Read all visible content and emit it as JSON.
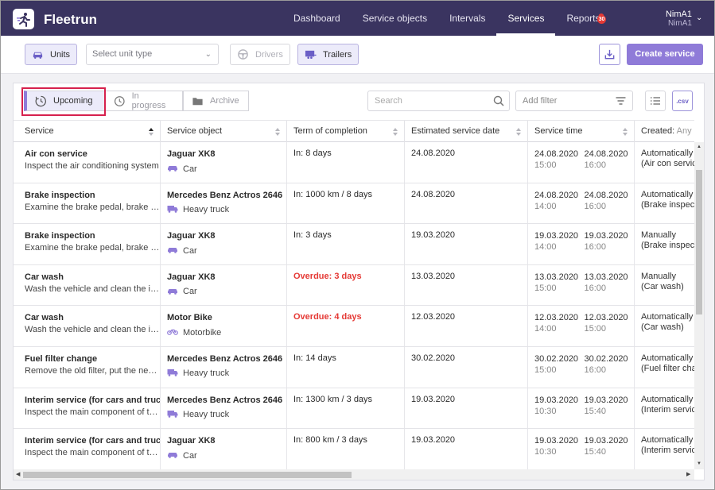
{
  "nav": {
    "brand": "Fleetrun",
    "menu": [
      "Dashboard",
      "Service objects",
      "Intervals",
      "Services",
      "Reports"
    ],
    "active_menu": "Services",
    "notification_count": "30",
    "user_name": "NimA1",
    "user_sub": "NimA1"
  },
  "toolbar": {
    "units_label": "Units",
    "unit_type_placeholder": "Select unit type",
    "drivers_label": "Drivers",
    "trailers_label": "Trailers",
    "create_label": "Create service"
  },
  "tabs": {
    "upcoming": "Upcoming",
    "in_progress": "In progress",
    "archive": "Archive"
  },
  "search": {
    "placeholder": "Search"
  },
  "filter": {
    "placeholder": "Add filter"
  },
  "csv_label": ".csv",
  "table": {
    "headers": {
      "service": "Service",
      "object": "Service object",
      "term": "Term of completion",
      "estimated": "Estimated service date",
      "time": "Service time",
      "created": "Created:",
      "created_filter": "Any"
    },
    "rows": [
      {
        "name": "Air con service",
        "desc": "Inspect the air conditioning system",
        "object": "Jaguar XK8",
        "vehicle": "Car",
        "term": "In: 8 days",
        "overdue": false,
        "est": "24.08.2020",
        "start_date": "24.08.2020",
        "start_time": "15:00",
        "end_date": "24.08.2020",
        "end_time": "16:00",
        "created": "Automatically",
        "created_sub": "(Air con servic"
      },
      {
        "name": "Brake inspection",
        "desc": "Examine the brake pedal, brake fu...",
        "object": "Mercedes Benz Actros 2646",
        "vehicle": "Heavy truck",
        "term": "In: 1000 km / 8 days",
        "overdue": false,
        "est": "24.08.2020",
        "start_date": "24.08.2020",
        "start_time": "14:00",
        "end_date": "24.08.2020",
        "end_time": "16:00",
        "created": "Automatically",
        "created_sub": "(Brake inspect"
      },
      {
        "name": "Brake inspection",
        "desc": "Examine the brake pedal, brake fu...",
        "object": "Jaguar XK8",
        "vehicle": "Car",
        "term": "In: 3 days",
        "overdue": false,
        "est": "19.03.2020",
        "start_date": "19.03.2020",
        "start_time": "14:00",
        "end_date": "19.03.2020",
        "end_time": "16:00",
        "created": "Manually",
        "created_sub": "(Brake inspect"
      },
      {
        "name": "Car wash",
        "desc": "Wash the vehicle and clean the in...",
        "object": "Jaguar XK8",
        "vehicle": "Car",
        "term": "Overdue: 3 days",
        "overdue": true,
        "est": "13.03.2020",
        "start_date": "13.03.2020",
        "start_time": "15:00",
        "end_date": "13.03.2020",
        "end_time": "16:00",
        "created": "Manually",
        "created_sub": "(Car wash)"
      },
      {
        "name": "Car wash",
        "desc": "Wash the vehicle and clean the in...",
        "object": "Motor Bike",
        "vehicle": "Motorbike",
        "term": "Overdue: 4 days",
        "overdue": true,
        "est": "12.03.2020",
        "start_date": "12.03.2020",
        "start_time": "14:00",
        "end_date": "12.03.2020",
        "end_time": "15:00",
        "created": "Automatically",
        "created_sub": "(Car wash)"
      },
      {
        "name": "Fuel filter change",
        "desc": "Remove the old filter, put the new ...",
        "object": "Mercedes Benz Actros 2646",
        "vehicle": "Heavy truck",
        "term": "In: 14 days",
        "overdue": false,
        "est": "30.02.2020",
        "start_date": "30.02.2020",
        "start_time": "15:00",
        "end_date": "30.02.2020",
        "end_time": "16:00",
        "created": "Automatically",
        "created_sub": "(Fuel filter char"
      },
      {
        "name": "Interim service (for cars and truc...",
        "desc": "Inspect the main component of th...",
        "object": "Mercedes Benz Actros 2646",
        "vehicle": "Heavy truck",
        "term": "In: 1300 km / 3 days",
        "overdue": false,
        "est": "19.03.2020",
        "start_date": "19.03.2020",
        "start_time": "10:30",
        "end_date": "19.03.2020",
        "end_time": "15:40",
        "created": "Automatically",
        "created_sub": "(Interim servic"
      },
      {
        "name": "Interim service (for cars and truc...",
        "desc": "Inspect the main component of th...",
        "object": "Jaguar XK8",
        "vehicle": "Car",
        "term": "In: 800 km / 3 days",
        "overdue": false,
        "est": "19.03.2020",
        "start_date": "19.03.2020",
        "start_time": "10:30",
        "end_date": "19.03.2020",
        "end_time": "15:40",
        "created": "Automatically",
        "created_sub": "(Interim servic"
      }
    ]
  },
  "colors": {
    "nav_bg": "#3a3460",
    "accent": "#8f7bd8",
    "overdue": "#e53935",
    "highlight": "#d6214d"
  }
}
